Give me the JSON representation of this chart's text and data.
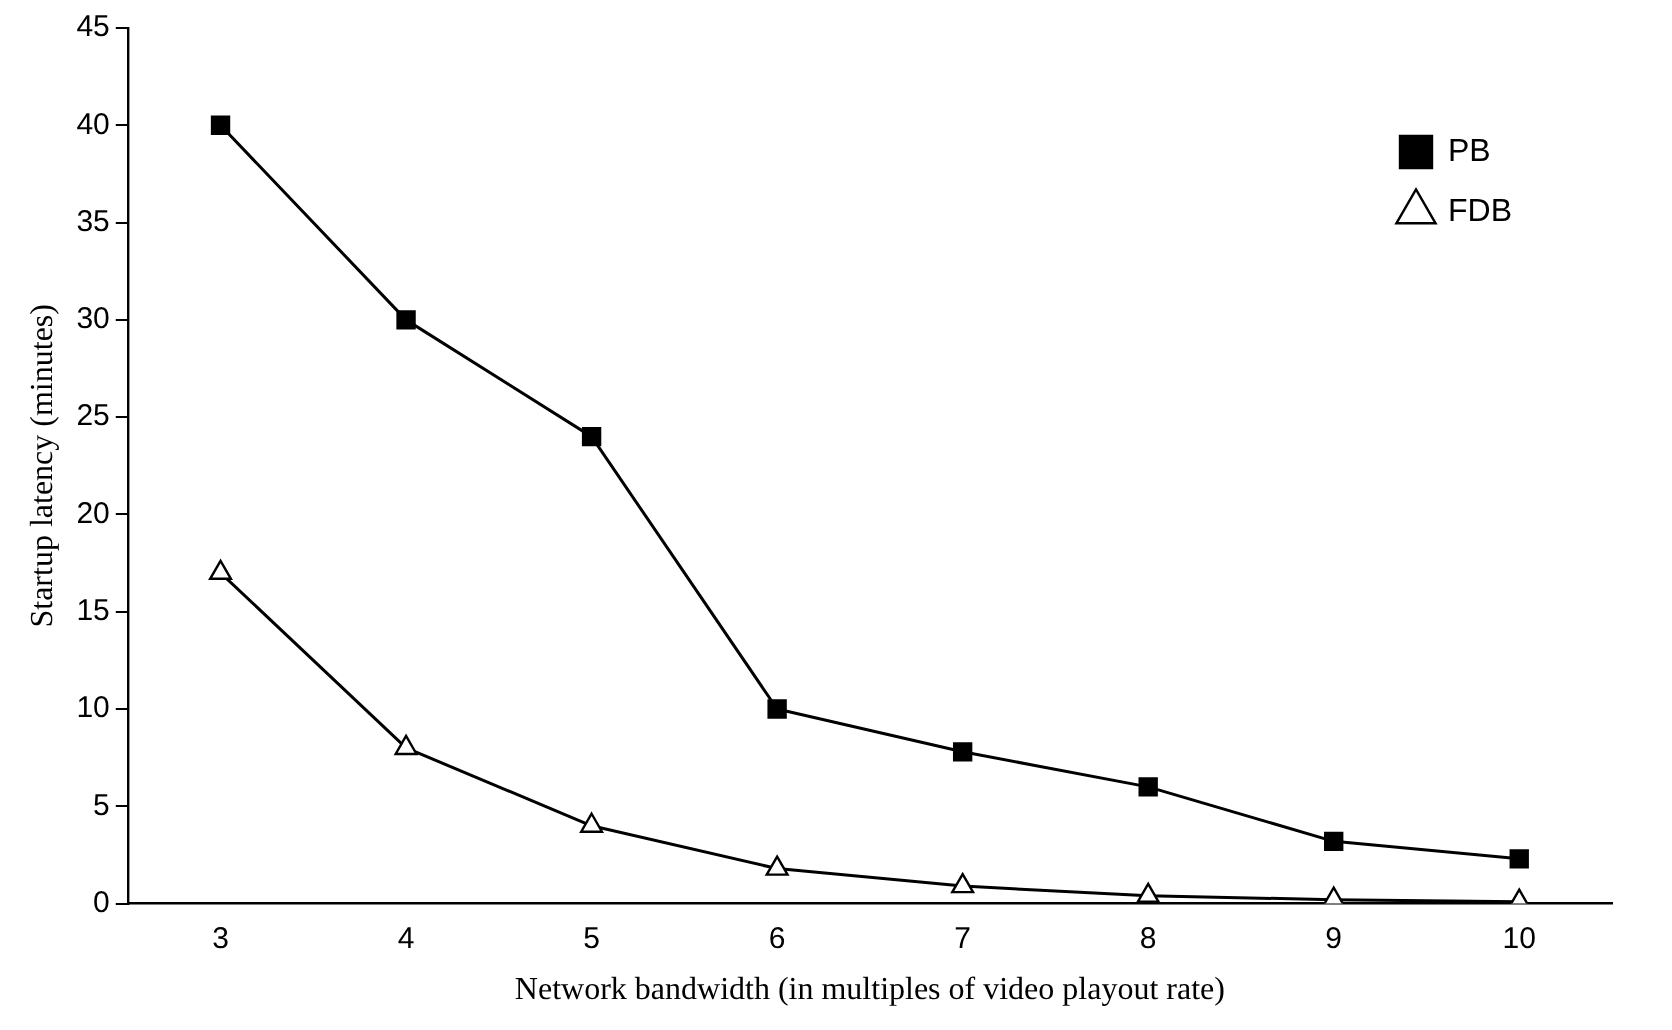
{
  "chart_data": {
    "type": "line",
    "xlabel": "Network bandwidth (in multiples of video playout rate)",
    "ylabel": "Startup latency (minutes)",
    "categories": [
      "3",
      "4",
      "5",
      "6",
      "7",
      "8",
      "9",
      "10"
    ],
    "series": [
      {
        "name": "PB",
        "color": "#000000",
        "marker": "square",
        "values": [
          40,
          30,
          24,
          10,
          7.8,
          6,
          3.2,
          2.3
        ]
      },
      {
        "name": "FDB",
        "color": "#000000",
        "marker": "triangle",
        "values": [
          17,
          8,
          4,
          1.8,
          0.9,
          0.4,
          0.2,
          0.1
        ]
      }
    ],
    "ylim": [
      0,
      45
    ],
    "yticks": [
      0,
      5,
      10,
      15,
      20,
      25,
      30,
      35,
      40,
      45
    ],
    "grid": false,
    "legend": "top right",
    "line_style": "solid"
  }
}
